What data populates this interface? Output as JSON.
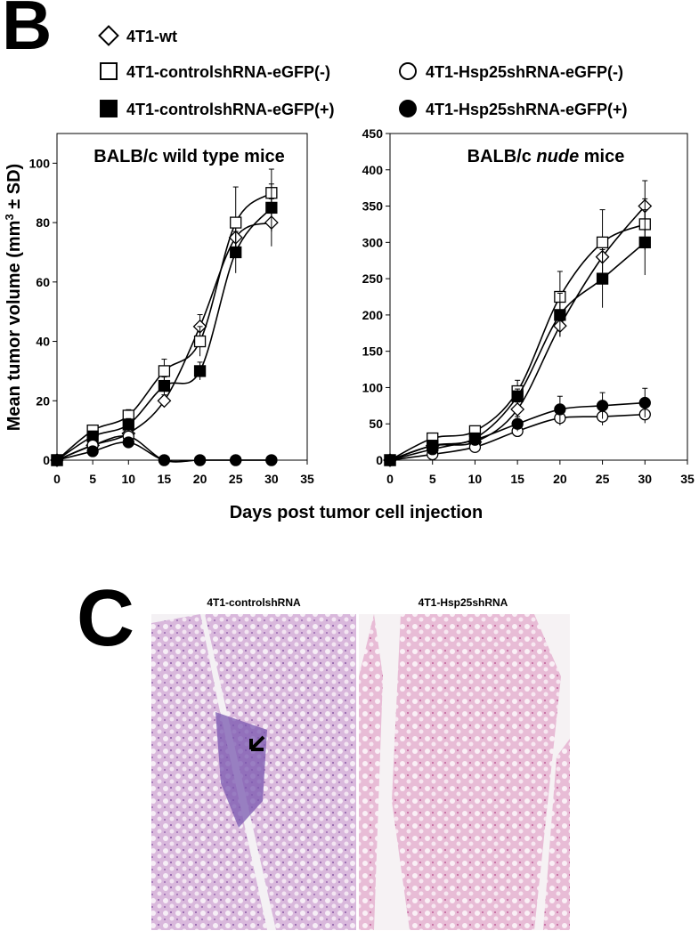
{
  "panel_labels": [
    "B",
    "C"
  ],
  "chart_data": [
    {
      "type": "line",
      "title": "BALB/c wild type mice",
      "y_label": [
        "Mean tumor volume (mm",
        "3",
        " ± SD)"
      ],
      "x_label": "Days post tumor cell injection",
      "x": [
        0,
        5,
        10,
        15,
        20,
        25,
        30
      ],
      "xlim": [
        0,
        35
      ],
      "xticks": [
        0,
        5,
        10,
        15,
        20,
        25,
        30,
        35
      ],
      "ylim": [
        0,
        110
      ],
      "yticks": [
        0,
        20,
        40,
        60,
        80,
        100
      ],
      "series": [
        {
          "name": "4T1-wt",
          "marker": "diamond-open",
          "color": "#000000",
          "values": [
            0,
            5,
            9,
            20,
            45,
            75,
            80
          ],
          "errors": [
            0,
            1,
            1,
            2,
            4,
            5,
            8
          ]
        },
        {
          "name": "4T1-controlshRNA-eGFP(-)",
          "marker": "square-open",
          "color": "#000000",
          "values": [
            0,
            10,
            15,
            30,
            40,
            80,
            90
          ],
          "errors": [
            0,
            1,
            2,
            4,
            5,
            12,
            8
          ]
        },
        {
          "name": "4T1-controlshRNA-eGFP(+)",
          "marker": "square-filled",
          "color": "#000000",
          "values": [
            0,
            8,
            12,
            25,
            30,
            70,
            85
          ],
          "errors": [
            0,
            1,
            2,
            3,
            3,
            7,
            8
          ]
        },
        {
          "name": "4T1-Hsp25shRNA-eGFP(-)",
          "marker": "circle-open",
          "color": "#000000",
          "values": [
            0,
            5,
            8,
            0,
            0,
            0,
            0
          ],
          "errors": [
            0,
            1,
            1,
            0,
            0,
            0,
            0
          ]
        },
        {
          "name": "4T1-Hsp25shRNA-eGFP(+)",
          "marker": "circle-filled",
          "color": "#000000",
          "values": [
            0,
            3,
            6,
            0,
            0,
            0,
            0
          ],
          "errors": [
            0,
            1,
            1,
            0,
            0,
            0,
            0
          ]
        }
      ]
    },
    {
      "type": "line",
      "title": [
        "BALB/c ",
        "nude",
        " mice"
      ],
      "x": [
        0,
        5,
        10,
        15,
        20,
        25,
        30
      ],
      "xlim": [
        0,
        35
      ],
      "xticks": [
        0,
        5,
        10,
        15,
        20,
        25,
        30,
        35
      ],
      "ylim": [
        0,
        450
      ],
      "yticks": [
        0,
        50,
        100,
        150,
        200,
        250,
        300,
        350,
        400,
        450
      ],
      "series": [
        {
          "marker": "diamond-open",
          "color": "#000000",
          "values": [
            0,
            20,
            25,
            70,
            185,
            280,
            350
          ],
          "errors": [
            0,
            3,
            3,
            10,
            15,
            20,
            35
          ]
        },
        {
          "marker": "square-open",
          "color": "#000000",
          "values": [
            0,
            30,
            40,
            95,
            225,
            300,
            325
          ],
          "errors": [
            0,
            3,
            5,
            15,
            35,
            45,
            35
          ]
        },
        {
          "marker": "square-filled",
          "color": "#000000",
          "values": [
            0,
            20,
            30,
            88,
            200,
            250,
            300
          ],
          "errors": [
            0,
            3,
            4,
            10,
            30,
            40,
            45
          ]
        },
        {
          "marker": "circle-open",
          "color": "#000000",
          "values": [
            0,
            8,
            18,
            40,
            58,
            60,
            63
          ],
          "errors": [
            0,
            2,
            3,
            8,
            10,
            12,
            12
          ]
        },
        {
          "marker": "circle-filled",
          "color": "#000000",
          "values": [
            0,
            15,
            28,
            50,
            70,
            75,
            79
          ],
          "errors": [
            0,
            2,
            4,
            10,
            18,
            18,
            20
          ]
        }
      ]
    }
  ],
  "histology": {
    "images": [
      {
        "title": "4T1-controlshRNA"
      },
      {
        "title": "4T1-Hsp25shRNA"
      }
    ]
  }
}
